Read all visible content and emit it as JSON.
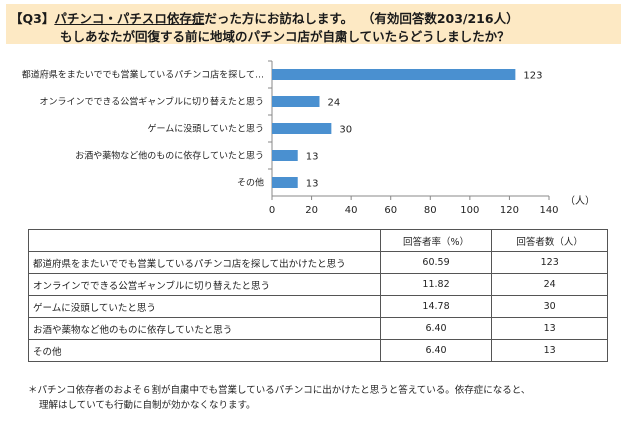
{
  "header": {
    "q_label": "【Q3】",
    "q_underlined": "パチンコ・パチスロ依存症",
    "q_rest": "だった方にお訪ねします。",
    "respondents": "（有効回答数203/216人）",
    "line2": "もしあなたが回復する前に地域のパチンコ店が自粛していたらどうしましたか？"
  },
  "colors": {
    "header_bg": "#fde9c4",
    "bar": "#4a90d0"
  },
  "chart_data": {
    "type": "bar",
    "orientation": "horizontal",
    "categories": [
      "都道府県をまたいででも営業しているパチンコ店を探して…",
      "オンラインでできる公営ギャンブルに切り替えたと思う",
      "ゲームに没頭していたと思う",
      "お酒や薬物など他のものに依存していたと思う",
      "その他"
    ],
    "values": [
      123,
      24,
      30,
      13,
      13
    ],
    "xlim": [
      0,
      140
    ],
    "xticks": [
      0,
      20,
      40,
      60,
      80,
      100,
      120,
      140
    ],
    "unit_label": "（人）",
    "grid": false
  },
  "table": {
    "headers": [
      "",
      "回答者率（%）",
      "回答者数（人）"
    ],
    "rows": [
      [
        "都道府県をまたいででも営業しているパチンコ店を探して出かけたと思う",
        "60.59",
        "123"
      ],
      [
        "オンラインでできる公営ギャンブルに切り替えたと思う",
        "11.82",
        "24"
      ],
      [
        "ゲームに没頭していたと思う",
        "14.78",
        "30"
      ],
      [
        "お酒や薬物など他のものに依存していたと思う",
        "6.40",
        "13"
      ],
      [
        "その他",
        "6.40",
        "13"
      ]
    ]
  },
  "note": {
    "line1": "＊パチンコ依存者のおよそ６割が自粛中でも営業しているパチンコに出かけたと思うと答えている。依存症になると、",
    "line2": "理解はしていても行動に自制が効かなくなります。"
  }
}
